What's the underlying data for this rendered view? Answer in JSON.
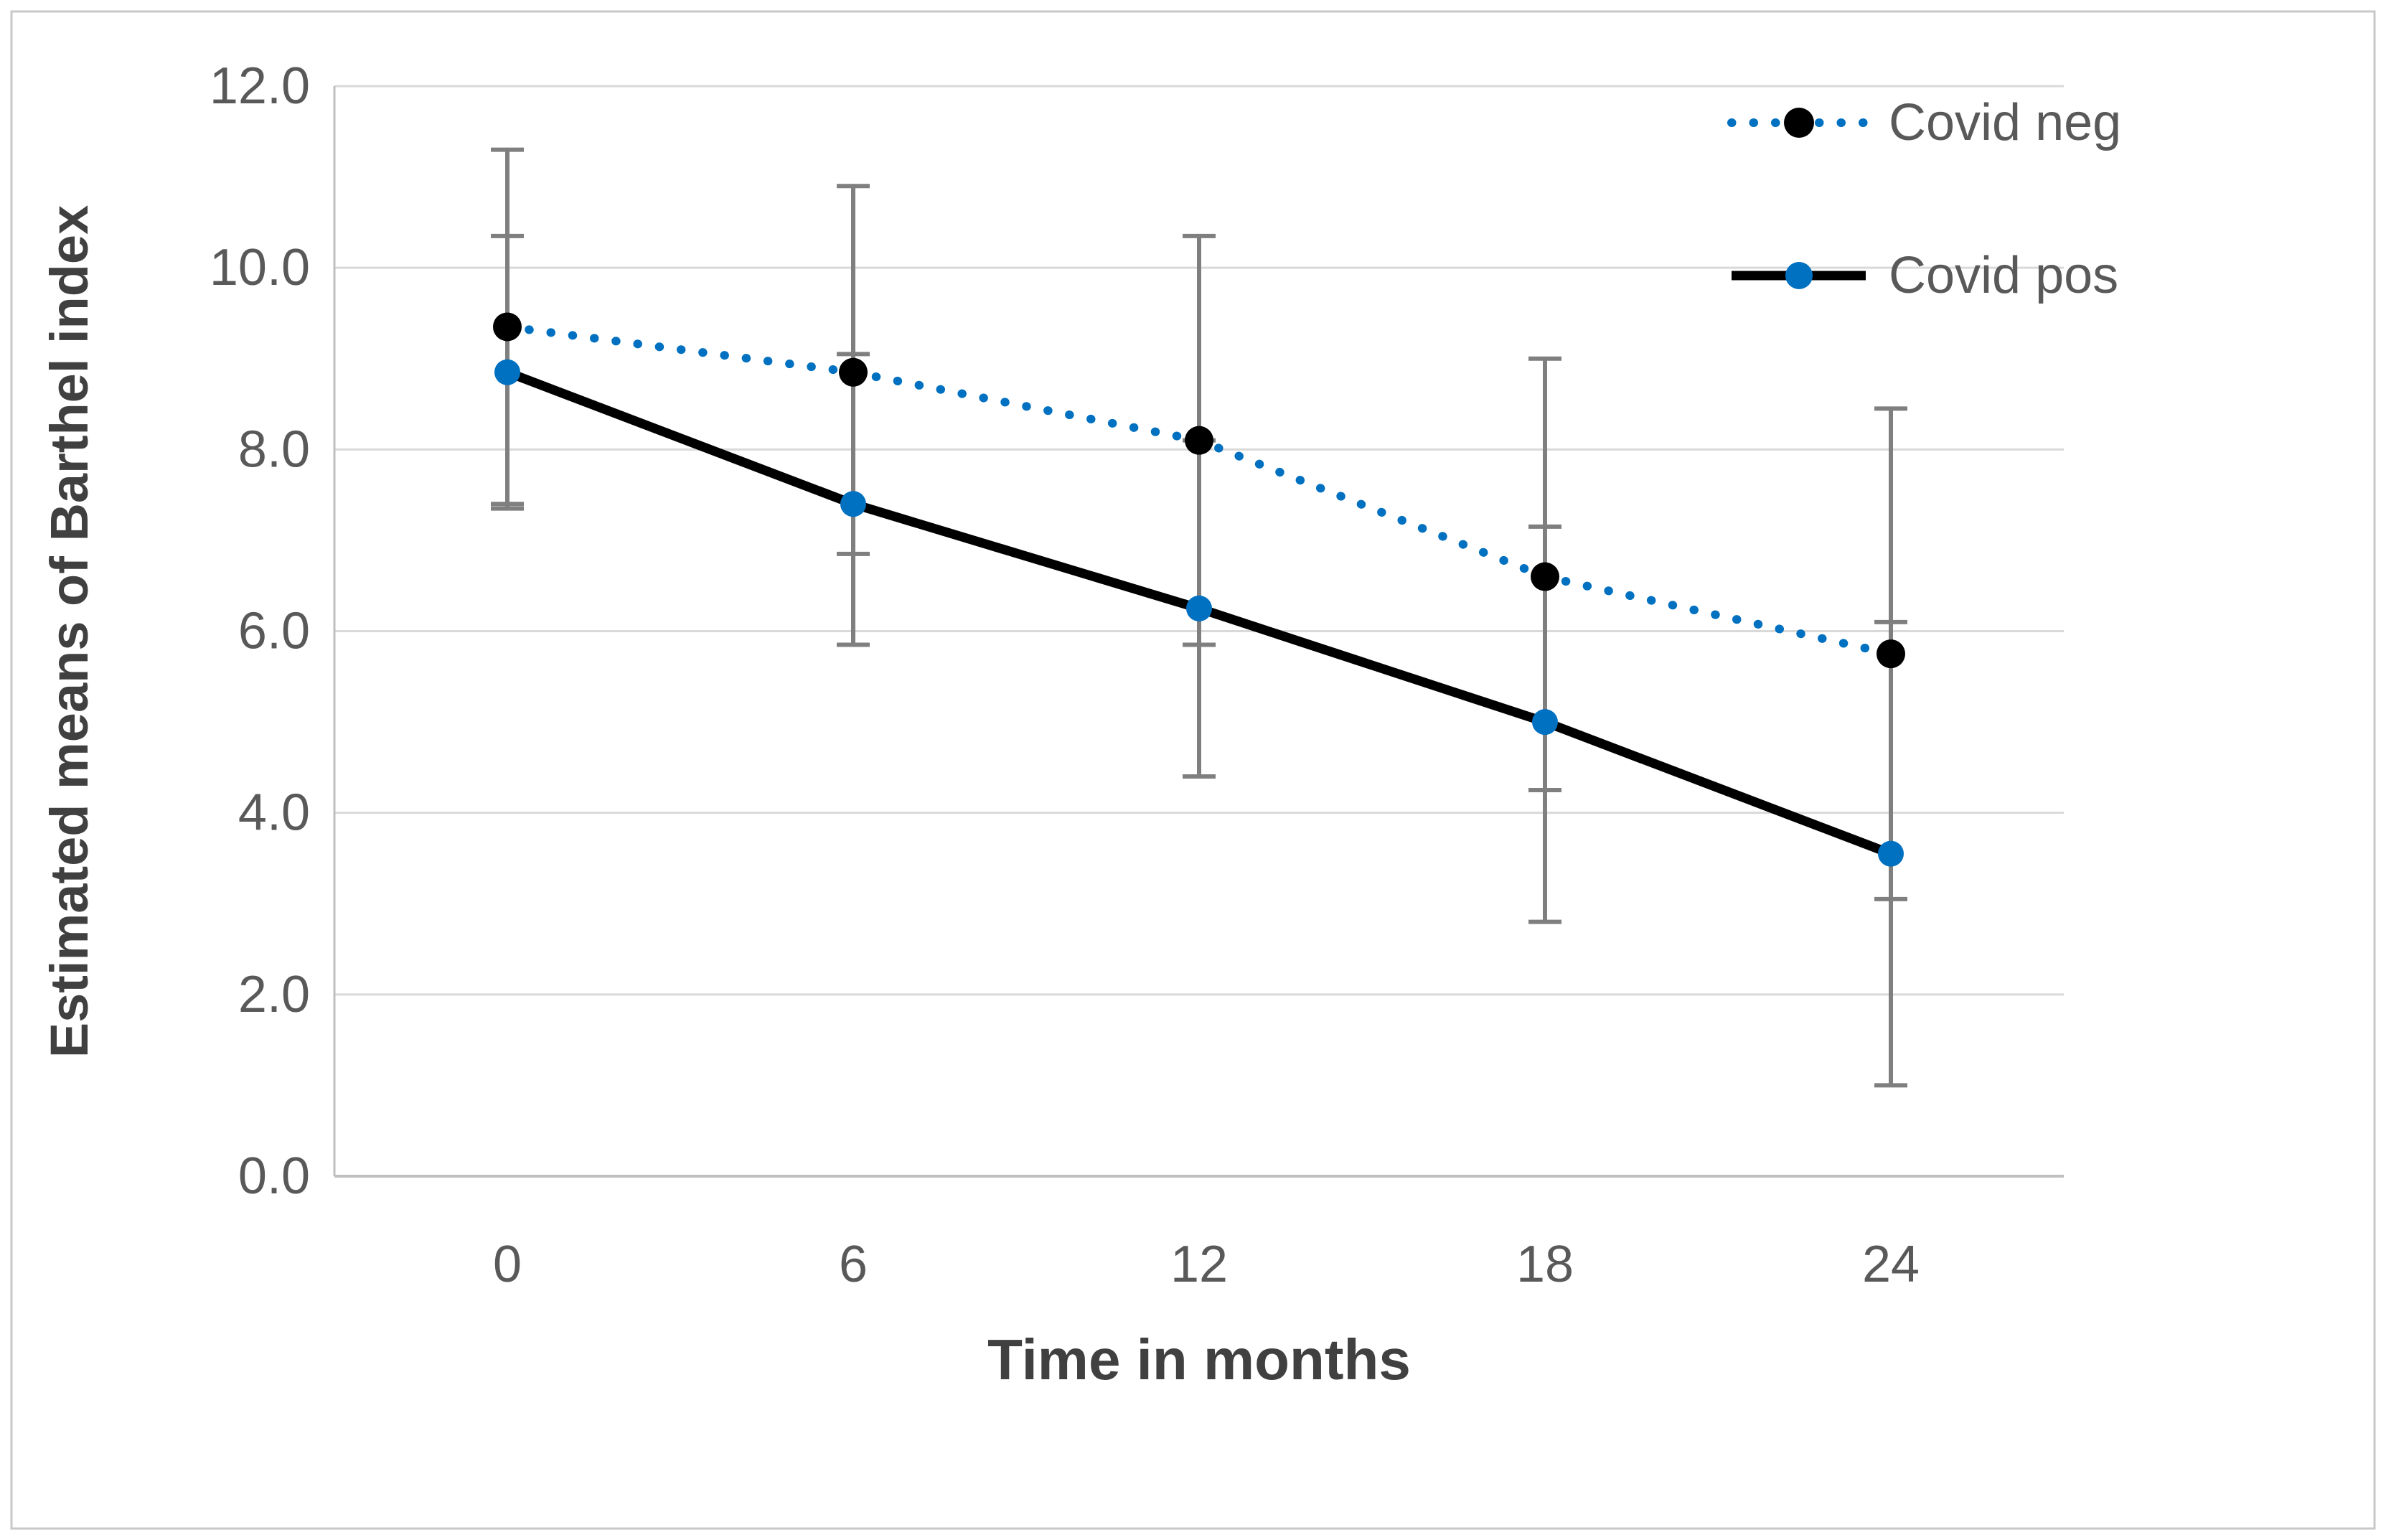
{
  "figure": {
    "background_color": "#FFFFFF",
    "border_color": "#C8C8C8"
  },
  "chart_data": {
    "type": "line",
    "title": "",
    "xlabel": "Time in months",
    "ylabel": "Estimated means of Barthel index",
    "x_categories": [
      "0",
      "6",
      "12",
      "18",
      "24"
    ],
    "x_values": [
      0,
      6,
      12,
      18,
      24
    ],
    "ylim": [
      0,
      12
    ],
    "y_tick_step": 2,
    "y_tick_labels": [
      "0.0",
      "2.0",
      "4.0",
      "6.0",
      "8.0",
      "10.0",
      "12.0"
    ],
    "grid": "horizontal-only",
    "legend_position": "top-right",
    "error_bars": true,
    "series": [
      {
        "name": "Covid neg",
        "values": [
          9.35,
          8.85,
          8.1,
          6.6,
          5.75
        ],
        "ci_upper": [
          11.3,
          10.9,
          10.35,
          9.0,
          8.45
        ],
        "ci_lower": [
          7.4,
          6.85,
          5.85,
          4.25,
          3.05
        ],
        "line_style": "dotted",
        "line_color": "#0070C0",
        "marker_color": "#000000",
        "marker_shape": "circle"
      },
      {
        "name": "Covid pos",
        "values": [
          8.85,
          7.4,
          6.25,
          5.0,
          3.55
        ],
        "ci_upper": [
          10.35,
          9.05,
          8.1,
          7.15,
          6.1
        ],
        "ci_lower": [
          7.35,
          5.85,
          4.4,
          2.8,
          1.0
        ],
        "line_style": "solid",
        "line_color": "#000000",
        "marker_color": "#0070C0",
        "marker_shape": "circle"
      }
    ],
    "colors": {
      "gridline": "#D9D9D9",
      "axis_line": "#BFBFBF",
      "error_bar": "#7F7F7F",
      "tick_label": "#595959",
      "axis_title": "#404040",
      "legend_text": "#595959",
      "series_blue": "#0070C0",
      "series_black": "#000000"
    }
  }
}
